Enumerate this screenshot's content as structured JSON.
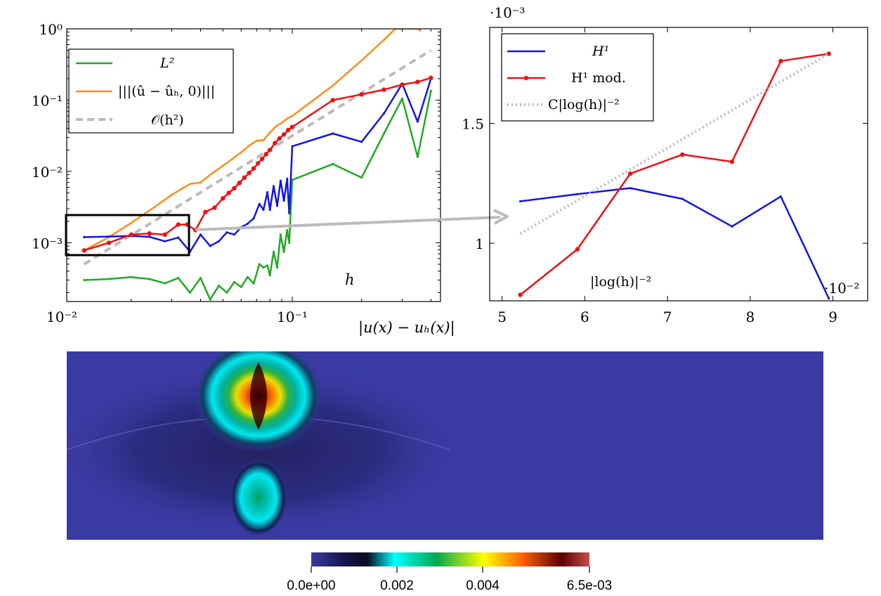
{
  "chart_data": [
    {
      "type": "line",
      "x_scale": "log",
      "y_scale": "log",
      "xlim": [
        0.0105,
        0.44
      ],
      "ylim": [
        0.00015,
        1.0
      ],
      "x_ticks": [
        {
          "value": 0.01,
          "label": "10⁻²"
        },
        {
          "value": 0.1,
          "label": "10⁻¹"
        }
      ],
      "y_ticks": [
        {
          "value": 0.001,
          "label": "10⁻³"
        },
        {
          "value": 0.01,
          "label": "10⁻²"
        },
        {
          "value": 0.1,
          "label": "10⁻¹"
        },
        {
          "value": 1.0,
          "label": "10⁰"
        }
      ],
      "annotation_h": "h",
      "annotation_error": "|u(x) − uₕ(x)|",
      "legend_position": "top-left",
      "legend": [
        {
          "label": "L²",
          "color": "#22aa22",
          "style": "solid"
        },
        {
          "label": "|||(û − ûₕ, 0)|||",
          "color": "#ff8c1a",
          "style": "solid"
        },
        {
          "label": "𝒪(h²)",
          "color": "#bbbbbb",
          "style": "dashed"
        }
      ],
      "series": [
        {
          "name": "L²",
          "color": "#22aa22",
          "x": [
            0.0125,
            0.016,
            0.02,
            0.024,
            0.028,
            0.032,
            0.036,
            0.04,
            0.044,
            0.048,
            0.052,
            0.056,
            0.06,
            0.064,
            0.068,
            0.072,
            0.075,
            0.078,
            0.08,
            0.083,
            0.086,
            0.089,
            0.092,
            0.095,
            0.097,
            0.1,
            0.15,
            0.2,
            0.25,
            0.3,
            0.35,
            0.4
          ],
          "y": [
            0.0003,
            0.00031,
            0.00033,
            0.00031,
            0.00027,
            0.00032,
            0.0002,
            0.00032,
            0.00016,
            0.00025,
            0.0002,
            0.00028,
            0.00024,
            0.00033,
            0.00027,
            0.0005,
            0.00045,
            0.00048,
            0.00035,
            0.00075,
            0.00045,
            0.0013,
            0.00075,
            0.0015,
            0.001,
            0.0076,
            0.0127,
            0.0082,
            0.034,
            0.105,
            0.016,
            0.135
          ]
        },
        {
          "name": "|||(û − ûₕ, 0)|||",
          "color": "#ff8c1a",
          "x": [
            0.0125,
            0.016,
            0.02,
            0.025,
            0.03,
            0.036,
            0.04,
            0.045,
            0.05,
            0.055,
            0.06,
            0.065,
            0.07,
            0.075,
            0.08,
            0.085,
            0.09,
            0.095,
            0.1,
            0.15,
            0.2,
            0.25,
            0.28,
            0.35,
            0.36
          ],
          "y": [
            0.00078,
            0.0012,
            0.0019,
            0.0031,
            0.0047,
            0.0067,
            0.007,
            0.0095,
            0.012,
            0.015,
            0.0185,
            0.023,
            0.027,
            0.0275,
            0.035,
            0.043,
            0.048,
            0.055,
            0.06,
            0.16,
            0.36,
            0.7,
            1.0,
            1.0,
            0.95
          ]
        },
        {
          "name": "𝒪(h²)",
          "color": "#bbbbbb",
          "x": [
            0.0125,
            0.4
          ],
          "y": [
            0.0005,
            0.5
          ]
        },
        {
          "name": "",
          "color": "#1414e6",
          "x": [
            0.0125,
            0.016,
            0.02,
            0.024,
            0.028,
            0.032,
            0.036,
            0.04,
            0.044,
            0.048,
            0.052,
            0.056,
            0.06,
            0.064,
            0.068,
            0.072,
            0.075,
            0.078,
            0.08,
            0.083,
            0.086,
            0.089,
            0.092,
            0.095,
            0.097,
            0.1,
            0.15,
            0.2,
            0.25,
            0.3,
            0.35,
            0.4
          ],
          "y": [
            0.0012,
            0.00122,
            0.00125,
            0.00121,
            0.00105,
            0.00118,
            0.00075,
            0.0013,
            0.0009,
            0.00105,
            0.0014,
            0.0013,
            0.00165,
            0.00185,
            0.0022,
            0.0035,
            0.0029,
            0.0051,
            0.0029,
            0.0062,
            0.0033,
            0.0074,
            0.0039,
            0.0079,
            0.0026,
            0.0225,
            0.034,
            0.026,
            0.065,
            0.17,
            0.05,
            0.2
          ]
        },
        {
          "name": "",
          "color": "#ee1111",
          "x": [
            0.0125,
            0.016,
            0.02,
            0.024,
            0.028,
            0.032,
            0.035,
            0.038,
            0.042,
            0.046,
            0.05,
            0.053,
            0.056,
            0.059,
            0.062,
            0.065,
            0.068,
            0.071,
            0.074,
            0.077,
            0.08,
            0.084,
            0.088,
            0.092,
            0.096,
            0.1,
            0.15,
            0.2,
            0.25,
            0.3,
            0.35,
            0.4
          ],
          "y": [
            0.00078,
            0.001,
            0.0013,
            0.00135,
            0.0013,
            0.0018,
            0.0018,
            0.0015,
            0.0027,
            0.0031,
            0.0042,
            0.005,
            0.0058,
            0.0069,
            0.0082,
            0.0095,
            0.011,
            0.013,
            0.015,
            0.0175,
            0.02,
            0.025,
            0.029,
            0.033,
            0.038,
            0.042,
            0.1,
            0.12,
            0.14,
            0.165,
            0.18,
            0.205
          ]
        }
      ]
    },
    {
      "type": "line",
      "x_scale": "linear",
      "y_scale": "linear",
      "xlim": [
        4.85,
        9.42
      ],
      "ylim": [
        0.00076,
        0.0019
      ],
      "x_multiplier_label": "·10⁻²",
      "y_multiplier_label": "·10⁻³",
      "x_ticks": [
        5,
        6,
        7,
        8,
        9
      ],
      "y_ticks": [
        {
          "value": 0.001,
          "label": "1"
        },
        {
          "value": 0.0015,
          "label": "1.5"
        }
      ],
      "xlabel": "|log(h)|⁻²",
      "legend_position": "top-left",
      "series": [
        {
          "name": "H¹",
          "color": "#1414e6",
          "style": "solid",
          "marker": "small",
          "x": [
            5.22,
            5.91,
            6.55,
            7.18,
            7.78,
            8.37,
            8.95
          ],
          "y": [
            0.001175,
            0.001205,
            0.00123,
            0.001185,
            0.00107,
            0.001195,
            0.00077
          ]
        },
        {
          "name": "H¹ mod.",
          "color": "#ee1111",
          "style": "solid",
          "marker": "dot",
          "x": [
            5.22,
            5.91,
            6.55,
            7.18,
            7.78,
            8.37,
            8.95
          ],
          "y": [
            0.000785,
            0.000975,
            0.00129,
            0.00137,
            0.00134,
            0.00176,
            0.00179
          ]
        },
        {
          "name": "C|log(h)|⁻²",
          "color": "#bbbbbb",
          "style": "dotted",
          "x": [
            5.22,
            8.95
          ],
          "y": [
            0.00104,
            0.00179
          ]
        }
      ]
    },
    {
      "type": "heatmap",
      "colorbar": {
        "min_label": "0.0e+00",
        "tick_labels": [
          "0.002",
          "0.004"
        ],
        "max_label": "6.5e-03",
        "min": 0.0,
        "max": 0.0065,
        "ticks": [
          0.0,
          0.002,
          0.004,
          0.0065
        ],
        "colormap": [
          "#3a3aa3",
          "#0a0a20",
          "#00ffff",
          "#00a850",
          "#ffff00",
          "#ff6000",
          "#5a0000",
          "#cc4c4c"
        ]
      }
    }
  ]
}
